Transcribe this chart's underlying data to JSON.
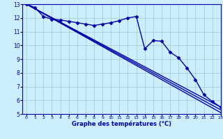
{
  "xlabel": "Graphe des températures (°C)",
  "bg_color": "#cceeff",
  "grid_color": "#99cccc",
  "line_color": "#0000aa",
  "xlim": [
    -0.5,
    23
  ],
  "ylim": [
    5,
    13
  ],
  "xticks": [
    0,
    1,
    2,
    3,
    4,
    5,
    6,
    7,
    8,
    9,
    10,
    11,
    12,
    13,
    14,
    15,
    16,
    17,
    18,
    19,
    20,
    21,
    22,
    23
  ],
  "yticks": [
    5,
    6,
    7,
    8,
    9,
    10,
    11,
    12,
    13
  ],
  "series": [
    {
      "x": [
        0,
        1,
        2,
        3,
        4,
        5,
        6,
        7,
        8,
        9,
        10,
        11,
        12,
        13,
        14,
        15,
        16,
        17,
        18,
        19,
        20,
        21,
        22,
        23
      ],
      "y": [
        13.0,
        12.75,
        12.1,
        11.9,
        11.85,
        11.75,
        11.65,
        11.55,
        11.45,
        11.55,
        11.65,
        11.8,
        12.0,
        12.1,
        9.75,
        10.35,
        10.3,
        9.5,
        9.1,
        8.35,
        7.5,
        6.4,
        5.9,
        5.5
      ],
      "marker": "D",
      "markersize": 2.5,
      "linewidth": 1.0
    },
    {
      "x": [
        0,
        23
      ],
      "y": [
        13.0,
        5.5
      ],
      "marker": null,
      "markersize": 0,
      "linewidth": 1.0
    },
    {
      "x": [
        0,
        23
      ],
      "y": [
        13.0,
        5.3
      ],
      "marker": null,
      "markersize": 0,
      "linewidth": 1.0
    },
    {
      "x": [
        0,
        23
      ],
      "y": [
        13.0,
        5.1
      ],
      "marker": null,
      "markersize": 0,
      "linewidth": 1.0
    }
  ]
}
